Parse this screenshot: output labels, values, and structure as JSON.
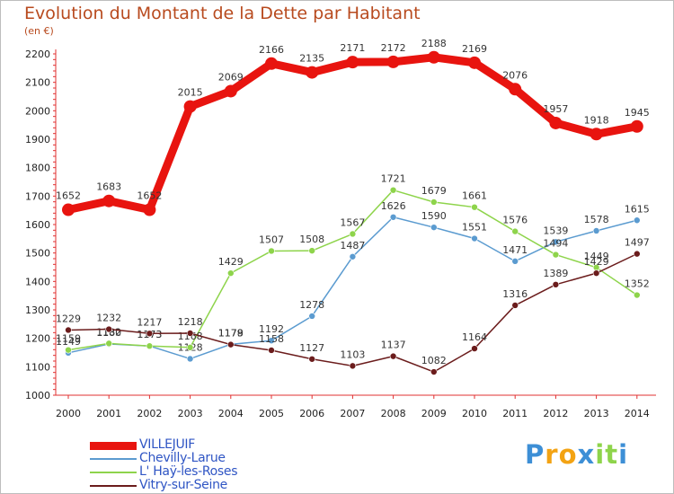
{
  "chart_data": {
    "type": "line",
    "title": "Evolution du Montant de la Dette par Habitant",
    "subtitle": "(en €)",
    "categories": [
      "2000",
      "2001",
      "2002",
      "2003",
      "2004",
      "2005",
      "2006",
      "2007",
      "2008",
      "2009",
      "2010",
      "2011",
      "2012",
      "2013",
      "2014"
    ],
    "ylim": [
      1000,
      2200
    ],
    "yticks": [
      1000,
      1100,
      1200,
      1300,
      1400,
      1500,
      1600,
      1700,
      1800,
      1900,
      2000,
      2100,
      2200
    ],
    "grid": false,
    "legend_position": "bottom-left",
    "series": [
      {
        "name": "VILLEJUIF",
        "color": "#e8140f",
        "values": [
          1652,
          1683,
          1652,
          2015,
          2069,
          2166,
          2135,
          2171,
          2172,
          2188,
          2169,
          2076,
          1957,
          1918,
          1945
        ]
      },
      {
        "name": "Chevilly-Larue",
        "color": "#5b9bd0",
        "values": [
          1149,
          1180,
          1173,
          1128,
          1179,
          1192,
          1278,
          1487,
          1626,
          1590,
          1551,
          1471,
          1539,
          1578,
          1615
        ]
      },
      {
        "name": "L' Haÿ-les-Roses",
        "color": "#8ed44b",
        "values": [
          1159,
          1182,
          1173,
          1168,
          1429,
          1507,
          1508,
          1567,
          1721,
          1679,
          1661,
          1576,
          1494,
          1449,
          1352
        ]
      },
      {
        "name": "Vitry-sur-Seine",
        "color": "#6b1c1c",
        "values": [
          1229,
          1232,
          1217,
          1218,
          1178,
          1158,
          1127,
          1103,
          1137,
          1082,
          1164,
          1316,
          1389,
          1429,
          1497
        ]
      }
    ]
  },
  "watermark": {
    "letters": [
      "P",
      "r",
      "o",
      "x",
      "i",
      "t",
      "i"
    ],
    "colors": [
      "#3d8fd6",
      "#f3a313",
      "#f3a313",
      "#3d8fd6",
      "#8ed44b",
      "#8ed44b",
      "#3d8fd6"
    ]
  }
}
